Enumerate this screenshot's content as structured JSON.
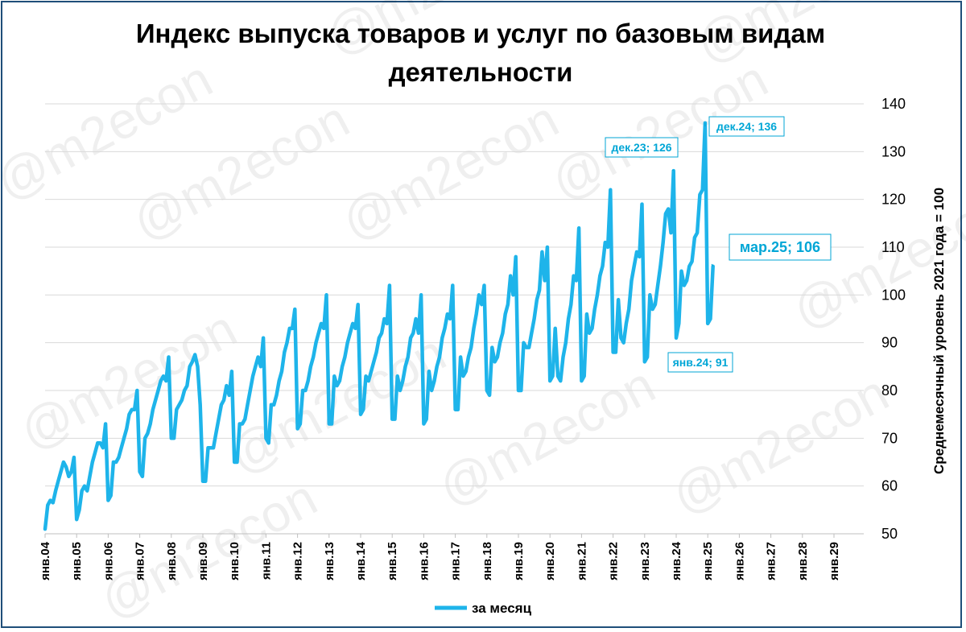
{
  "watermark": "@m2econ",
  "legend_label": "за месяц",
  "chart_data": {
    "type": "line",
    "title": "Индекс выпуска товаров и услуг по базовым видам деятельности",
    "title_lines": [
      "Индекс выпуска товаров и услуг по базовым видам",
      "деятельности"
    ],
    "ylabel": "Среднемесячный уровень 2021 года  =  100",
    "ylim": [
      50,
      140
    ],
    "yticks": [
      50,
      60,
      70,
      80,
      90,
      100,
      110,
      120,
      130,
      140
    ],
    "y_axis_position": "right",
    "grid": true,
    "legend_position": "bottom",
    "line_color": "#1eb4ea",
    "start": "янв.04",
    "categories": [
      "янв.04",
      "янв.05",
      "янв.06",
      "янв.07",
      "янв.08",
      "янв.09",
      "янв.10",
      "янв.11",
      "янв.12",
      "янв.13",
      "янв.14",
      "янв.15",
      "янв.16",
      "янв.17",
      "янв.18",
      "янв.19",
      "янв.20",
      "янв.21",
      "янв.22",
      "янв.23",
      "янв.24",
      "янв.25",
      "янв.26",
      "янв.27",
      "янв.28",
      "янв.29"
    ],
    "series": [
      {
        "name": "за месяц",
        "values_by_year": [
          [
            51,
            56,
            57,
            56.5,
            59,
            61,
            63,
            65,
            64,
            62,
            63,
            66
          ],
          [
            53,
            55,
            59,
            60,
            59,
            62,
            65,
            67,
            69,
            69,
            68,
            73
          ],
          [
            57,
            58,
            65,
            65,
            66,
            68,
            70,
            72,
            75,
            76,
            76,
            80
          ],
          [
            63,
            62,
            70,
            71,
            73,
            76,
            78,
            80,
            82,
            83,
            82,
            87
          ],
          [
            70,
            70,
            76,
            77,
            78,
            80,
            81,
            85,
            86,
            87.5,
            85,
            77
          ],
          [
            61,
            61,
            68,
            68,
            68,
            71,
            74,
            77,
            78,
            81,
            79,
            84
          ],
          [
            65,
            65,
            73,
            73,
            74,
            77,
            80,
            83,
            85,
            87,
            85,
            91
          ],
          [
            70,
            69,
            77,
            77,
            79,
            82,
            84,
            88,
            90,
            93,
            93,
            97
          ],
          [
            72,
            73,
            80,
            80,
            82,
            85,
            87,
            90,
            92,
            94,
            93,
            100
          ],
          [
            73,
            73,
            83,
            81,
            82,
            85,
            87,
            90,
            92,
            94,
            93,
            98
          ],
          [
            75,
            76,
            83,
            82,
            84,
            86,
            88,
            91,
            92,
            95,
            94,
            102
          ],
          [
            74,
            74,
            83,
            80,
            82,
            85,
            87,
            91,
            92,
            95,
            92,
            100
          ],
          [
            73,
            74,
            84,
            80,
            82,
            85,
            87,
            91,
            93,
            96,
            95,
            102
          ],
          [
            76,
            76,
            87,
            83,
            84,
            87,
            89,
            93,
            96,
            100,
            98,
            102
          ],
          [
            80,
            79,
            89,
            86,
            87,
            90,
            92,
            96,
            98,
            104,
            100,
            108
          ],
          [
            80,
            80,
            90,
            89,
            89,
            92,
            95,
            99,
            101,
            109,
            103,
            110
          ],
          [
            82,
            83,
            93,
            83,
            82,
            87,
            90,
            95,
            98,
            104,
            103,
            114
          ],
          [
            82,
            83,
            96,
            92,
            93,
            97,
            100,
            104,
            106,
            111,
            110,
            122
          ],
          [
            88,
            88,
            99,
            91,
            90,
            94,
            97,
            103,
            106,
            109,
            108,
            119
          ],
          [
            86,
            87,
            100,
            97,
            98,
            102,
            106,
            111,
            117,
            118,
            113,
            126
          ],
          [
            91,
            94,
            105,
            102,
            103,
            106,
            107,
            112,
            113,
            121,
            122,
            136
          ],
          [
            94,
            95,
            106
          ]
        ]
      }
    ],
    "annotations": [
      {
        "label": "дек.23; 126",
        "year_index": 19,
        "month": 11,
        "value": 126,
        "size": "small"
      },
      {
        "label": "дек.24; 136",
        "year_index": 20,
        "month": 11,
        "value": 136,
        "size": "small"
      },
      {
        "label": "янв.24; 91",
        "year_index": 20,
        "month": 0,
        "value": 91,
        "size": "small"
      },
      {
        "label": "мар.25; 106",
        "year_index": 21,
        "month": 2,
        "value": 106,
        "size": "big"
      }
    ]
  }
}
